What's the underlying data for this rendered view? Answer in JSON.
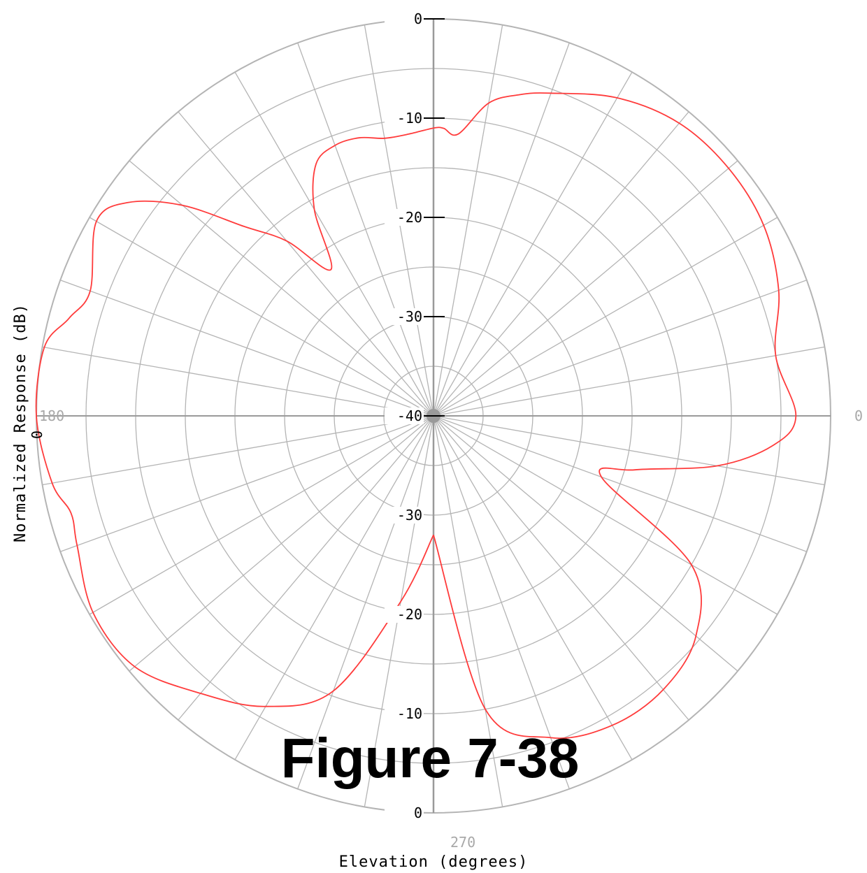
{
  "figure_title": "Figure 7-38",
  "chart_data": {
    "type": "polar-line",
    "xlabel": "Elevation (degrees)",
    "ylabel": "Normalized Response (dB)",
    "angle_labels": {
      "right": "0",
      "left": "180",
      "bottom": "270"
    },
    "angle_grid_step_deg": 10,
    "radial_range_db": [
      -40,
      0
    ],
    "radial_ticks_top": [
      "0",
      "-10",
      "-20",
      "-30",
      "-40"
    ],
    "radial_ticks_bottom": [
      "-30",
      "-20",
      "-10",
      "0"
    ],
    "left_tick_label": "0",
    "colors": {
      "trace": "#ff3b3b",
      "grid": "#b4b4b4",
      "axis": "#9a9a9a"
    },
    "series": [
      {
        "points": [
          [
            -90,
            -28
          ],
          [
            -80,
            -10
          ],
          [
            -70,
            -5.5
          ],
          [
            -60,
            -4
          ],
          [
            -50,
            -4
          ],
          [
            -40,
            -5.5
          ],
          [
            -30,
            -10
          ],
          [
            -20,
            -22
          ],
          [
            -15,
            -19
          ],
          [
            -10,
            -11
          ],
          [
            -5,
            -5.7
          ],
          [
            0,
            -3.5
          ],
          [
            10,
            -5
          ],
          [
            20,
            -3
          ],
          [
            30,
            -1.6
          ],
          [
            40,
            -1.2
          ],
          [
            50,
            -1.5
          ],
          [
            60,
            -3
          ],
          [
            70,
            -5.4
          ],
          [
            75,
            -6.5
          ],
          [
            80,
            -8
          ],
          [
            85,
            -11.5
          ],
          [
            88,
            -11
          ],
          [
            90,
            -11
          ],
          [
            95,
            -11.5
          ],
          [
            100,
            -11.6
          ],
          [
            105,
            -11
          ],
          [
            110,
            -11
          ],
          [
            115,
            -12
          ],
          [
            120,
            -16
          ],
          [
            125,
            -22
          ],
          [
            130,
            -17
          ],
          [
            135,
            -13
          ],
          [
            140,
            -7
          ],
          [
            145,
            -2.5
          ],
          [
            150,
            -0.8
          ],
          [
            160,
            -3.2
          ],
          [
            165,
            -2
          ],
          [
            170,
            -0.2
          ],
          [
            180,
            0
          ],
          [
            190,
            -1
          ],
          [
            195,
            -2.2
          ],
          [
            200,
            -1.8
          ],
          [
            210,
            -0.4
          ],
          [
            220,
            -0.7
          ],
          [
            230,
            -3.5
          ],
          [
            240,
            -6.2
          ],
          [
            250,
            -10.5
          ],
          [
            260,
            -21
          ],
          [
            270,
            -28
          ]
        ]
      }
    ]
  }
}
